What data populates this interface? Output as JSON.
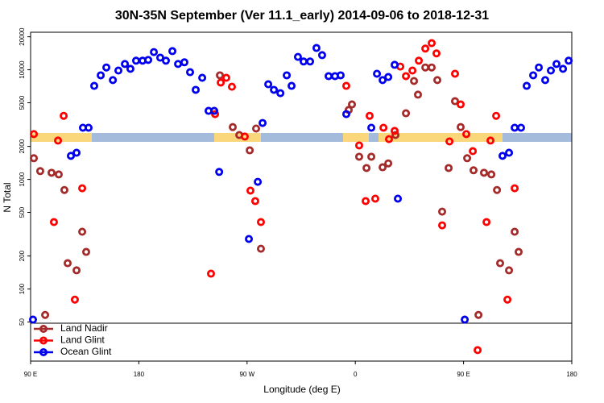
{
  "chart_data": {
    "type": "scatter",
    "title": "30N-35N September (Ver 11.1_early)   2014-09-06 to 2018-12-31",
    "x_label": "Longitude (deg E)",
    "y_label": "N Total",
    "log_y": true,
    "xlim": [
      90,
      540
    ],
    "ylim": [
      22,
      22000
    ],
    "xticks": [
      {
        "value": 90,
        "label": "90 E"
      },
      {
        "value": 180,
        "label": "180"
      },
      {
        "value": 270,
        "label": "90 W"
      },
      {
        "value": 360,
        "label": "0"
      },
      {
        "value": 450,
        "label": "90 E"
      },
      {
        "value": 540,
        "label": "180"
      }
    ],
    "yticks": [
      50,
      100,
      200,
      500,
      1000,
      2000,
      5000,
      10000,
      20000
    ],
    "legend": "bottom-left",
    "series": [
      {
        "name": "Land Nadir",
        "color": "#a52a2a",
        "x": [
          92.7,
          98.0,
          102.1,
          107.4,
          113.4,
          118.1,
          120.8,
          128.2,
          132.9,
          136.2,
          247.4,
          258.1,
          263.5,
          272.2,
          277.5,
          281.5,
          354.5,
          357.2,
          363.2,
          369.3,
          373.3,
          382.7,
          387.4,
          393.4,
          402.1,
          408.8,
          412.1,
          418.2,
          423.5,
          428.2,
          432.2,
          437.6,
          442.9,
          447.6,
          453.0,
          458.3,
          462.4,
          467.0,
          473.1,
          477.8,
          480.4,
          487.8,
          492.5,
          495.8
        ],
        "values": [
          1560,
          1190,
          58,
          1150,
          1110,
          800,
          172,
          148,
          333,
          218,
          8900,
          3000,
          2540,
          1840,
          2910,
          233,
          4300,
          4830,
          1610,
          1270,
          1610,
          1290,
          1400,
          2540,
          4010,
          7900,
          5930,
          10500,
          10500,
          8050,
          508,
          1270,
          5170,
          3000,
          1560,
          1210,
          58,
          1150,
          1110,
          800,
          172,
          148,
          333,
          218
        ]
      },
      {
        "name": "Land Glint",
        "color": "#ff0000",
        "x": [
          92.7,
          109.4,
          112.8,
          117.5,
          126.8,
          132.9,
          240.0,
          243.4,
          248.1,
          252.7,
          257.4,
          268.1,
          272.8,
          276.8,
          281.5,
          352.5,
          363.2,
          368.6,
          371.9,
          376.6,
          383.4,
          388.0,
          392.7,
          397.4,
          402.1,
          407.5,
          412.8,
          418.2,
          423.5,
          427.5,
          432.2,
          438.3,
          442.9,
          447.6,
          452.3,
          457.7,
          461.7,
          469.1,
          472.4,
          477.1,
          486.5,
          492.5
        ],
        "values": [
          2590,
          408,
          2260,
          3800,
          80,
          830,
          138,
          3940,
          7640,
          8450,
          7000,
          2460,
          790,
          634,
          408,
          7130,
          2040,
          634,
          3800,
          667,
          2960,
          2330,
          2770,
          10700,
          8750,
          9840,
          12100,
          15600,
          17500,
          14100,
          381,
          2220,
          9200,
          4830,
          2590,
          1810,
          27.7,
          408,
          2260,
          3800,
          80,
          830
        ]
      },
      {
        "name": "Ocean Glint",
        "color": "#0000ee",
        "x": [
          92.0,
          123.5,
          128.2,
          133.5,
          138.2,
          142.9,
          148.3,
          153.0,
          158.4,
          163.0,
          168.4,
          173.0,
          177.7,
          183.1,
          187.8,
          192.5,
          197.8,
          202.5,
          207.9,
          212.6,
          217.9,
          222.6,
          227.3,
          232.7,
          238.0,
          242.7,
          246.8,
          271.5,
          278.9,
          282.9,
          287.6,
          292.3,
          297.7,
          303.0,
          307.0,
          312.3,
          317.0,
          322.4,
          327.7,
          332.4,
          337.8,
          343.1,
          347.8,
          352.5,
          373.3,
          378.0,
          382.7,
          387.4,
          392.7,
          395.4,
          451.0,
          482.4,
          487.8,
          492.5,
          497.8,
          502.5,
          507.9,
          512.6,
          517.9,
          522.6,
          527.3,
          532.7,
          537.4
        ],
        "values": [
          52.6,
          1640,
          1750,
          2960,
          2960,
          7130,
          8900,
          10500,
          8050,
          9840,
          11300,
          10200,
          12100,
          12100,
          12300,
          14500,
          12900,
          12100,
          14800,
          11300,
          11700,
          9510,
          6560,
          8450,
          4220,
          4220,
          1170,
          286,
          950,
          3270,
          7380,
          6560,
          6120,
          8900,
          7130,
          13100,
          11900,
          11900,
          15800,
          13600,
          8750,
          8750,
          8900,
          3940,
          2960,
          9200,
          8050,
          8590,
          11100,
          667,
          52.6,
          1640,
          1750,
          2960,
          2960,
          7130,
          8900,
          10500,
          8050,
          9840,
          11300,
          10200,
          12100
        ]
      }
    ]
  }
}
